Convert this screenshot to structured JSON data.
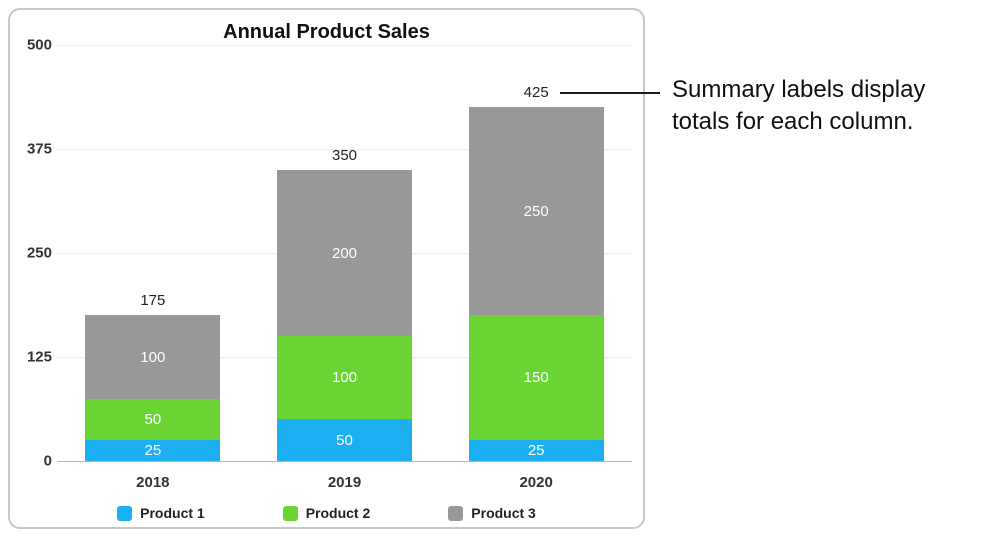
{
  "chart_data": {
    "type": "bar",
    "stacked": true,
    "title": "Annual Product Sales",
    "categories": [
      "2018",
      "2019",
      "2020"
    ],
    "series": [
      {
        "name": "Product 1",
        "color": "#1cb0f2",
        "values": [
          25,
          50,
          25
        ]
      },
      {
        "name": "Product 2",
        "color": "#6bd435",
        "values": [
          50,
          100,
          150
        ]
      },
      {
        "name": "Product 3",
        "color": "#989898",
        "values": [
          100,
          200,
          250
        ]
      }
    ],
    "totals": [
      175,
      350,
      425
    ],
    "y_ticks": [
      0,
      125,
      250,
      375,
      500
    ],
    "ylim": [
      0,
      500
    ],
    "grid": true,
    "legend_position": "bottom"
  },
  "annotation": {
    "text": "Summary labels display totals for each column."
  }
}
